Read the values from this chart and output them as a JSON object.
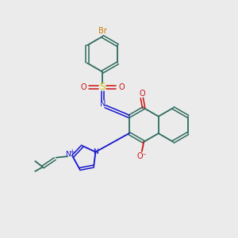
{
  "bg_color": "#ebebeb",
  "figsize": [
    3.0,
    3.0
  ],
  "dpi": 100,
  "colors": {
    "C": "#2d6b5e",
    "N": "#1515cc",
    "O": "#cc1111",
    "S": "#cccc00",
    "Br": "#cc7700"
  }
}
